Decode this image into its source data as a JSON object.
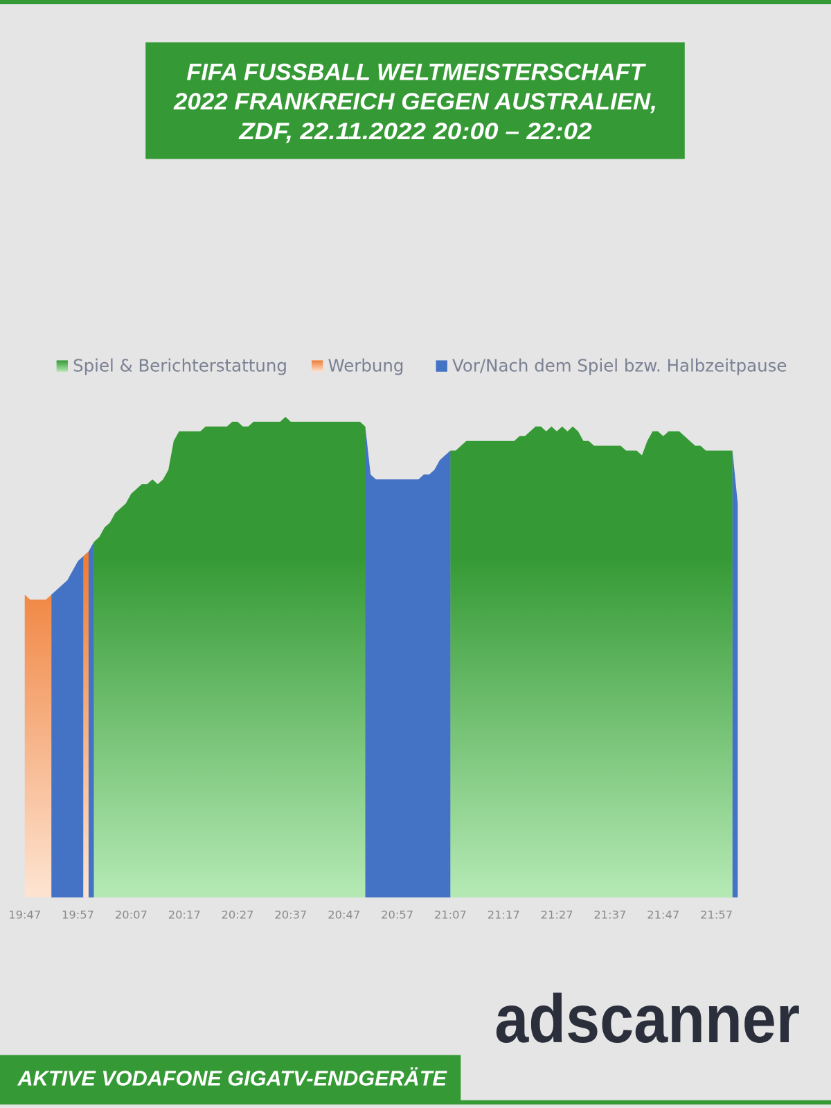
{
  "chart_data": {
    "type": "area",
    "title": [
      "FIFA FUSSBALL WELTMEISTERSCHAFT",
      "2022 FRANKREICH GEGEN AUSTRALIEN,",
      "ZDF, 22.11.2022 20:00 – 22:02"
    ],
    "footer": "AKTIVE VODAFONE GIGATV-ENDGERÄTE",
    "logo": "adscanner",
    "x": [
      "19:47",
      "19:48",
      "19:49",
      "19:50",
      "19:51",
      "19:52",
      "19:53",
      "19:54",
      "19:55",
      "19:56",
      "19:57",
      "19:58",
      "19:59",
      "20:00",
      "20:01",
      "20:02",
      "20:03",
      "20:04",
      "20:05",
      "20:06",
      "20:07",
      "20:08",
      "20:09",
      "20:10",
      "20:11",
      "20:12",
      "20:13",
      "20:14",
      "20:15",
      "20:16",
      "20:17",
      "20:18",
      "20:19",
      "20:20",
      "20:21",
      "20:22",
      "20:23",
      "20:24",
      "20:25",
      "20:26",
      "20:27",
      "20:28",
      "20:29",
      "20:30",
      "20:31",
      "20:32",
      "20:33",
      "20:34",
      "20:35",
      "20:36",
      "20:37",
      "20:38",
      "20:39",
      "20:40",
      "20:41",
      "20:42",
      "20:43",
      "20:44",
      "20:45",
      "20:46",
      "20:47",
      "20:48",
      "20:49",
      "20:50",
      "20:51",
      "20:52",
      "20:53",
      "20:54",
      "20:55",
      "20:56",
      "20:57",
      "20:58",
      "20:59",
      "21:00",
      "21:01",
      "21:02",
      "21:03",
      "21:04",
      "21:05",
      "21:06",
      "21:07",
      "21:08",
      "21:09",
      "21:10",
      "21:11",
      "21:12",
      "21:13",
      "21:14",
      "21:15",
      "21:16",
      "21:17",
      "21:18",
      "21:19",
      "21:20",
      "21:21",
      "21:22",
      "21:23",
      "21:24",
      "21:25",
      "21:26",
      "21:27",
      "21:28",
      "21:29",
      "21:30",
      "21:31",
      "21:32",
      "21:33",
      "21:34",
      "21:35",
      "21:36",
      "21:37",
      "21:38",
      "21:39",
      "21:40",
      "21:41",
      "21:42",
      "21:43",
      "21:44",
      "21:45",
      "21:46",
      "21:47",
      "21:48",
      "21:49",
      "21:50",
      "21:51",
      "21:52",
      "21:53",
      "21:54",
      "21:55",
      "21:56",
      "21:57",
      "21:58",
      "21:59",
      "22:00",
      "22:01"
    ],
    "series": [
      {
        "name": "Spiel & Berichterstattung",
        "color": "#359a35",
        "fill_bottom": "#b3e8b3",
        "gradient": true,
        "values": [
          null,
          null,
          null,
          null,
          null,
          null,
          null,
          null,
          null,
          null,
          null,
          null,
          null,
          74,
          75,
          77,
          78,
          80,
          81,
          82,
          84,
          85,
          86,
          86,
          87,
          86,
          87,
          89,
          95,
          97,
          97,
          97,
          97,
          97,
          98,
          98,
          98,
          98,
          98,
          99,
          99,
          98,
          98,
          99,
          99,
          99,
          99,
          99,
          99,
          100,
          99,
          99,
          99,
          99,
          99,
          99,
          99,
          99,
          99,
          99,
          99,
          99,
          99,
          99,
          98,
          null,
          null,
          null,
          null,
          null,
          null,
          null,
          null,
          null,
          null,
          null,
          null,
          null,
          null,
          null,
          93,
          93,
          94,
          95,
          95,
          95,
          95,
          95,
          95,
          95,
          95,
          95,
          95,
          96,
          96,
          97,
          98,
          98,
          97,
          98,
          97,
          98,
          97,
          98,
          97,
          95,
          95,
          94,
          94,
          94,
          94,
          94,
          94,
          93,
          93,
          93,
          92,
          95,
          97,
          97,
          96,
          97,
          97,
          97,
          96,
          95,
          94,
          94,
          93,
          93,
          93,
          93,
          93,
          93,
          null
        ]
      },
      {
        "name": "Werbung",
        "color": "#ef7d35",
        "fill_bottom": "#fde2cf",
        "gradient": true,
        "values": [
          63,
          62,
          62,
          62,
          62,
          63,
          null,
          null,
          null,
          null,
          null,
          71,
          72,
          null,
          null,
          null,
          null,
          null,
          null,
          null,
          null,
          null,
          null,
          null,
          null,
          null,
          null,
          null,
          null,
          null,
          null,
          null,
          null,
          null,
          null,
          null,
          null,
          null,
          null,
          null,
          null,
          null,
          null,
          null,
          null,
          null,
          null,
          null,
          null,
          null,
          null,
          null,
          null,
          null,
          null,
          null,
          null,
          null,
          null,
          null,
          null,
          null,
          null,
          null,
          null,
          null,
          null,
          null,
          null,
          null,
          null,
          null,
          null,
          null,
          null,
          null,
          null,
          null,
          null,
          null,
          null,
          null,
          null,
          null,
          null,
          null,
          null,
          null,
          null,
          null,
          null,
          null,
          null,
          null,
          null,
          null,
          null,
          null,
          null,
          null,
          null,
          null,
          null,
          null,
          null,
          null,
          null,
          null,
          null,
          null,
          null,
          null,
          null,
          null,
          null,
          null,
          null,
          null,
          null,
          null,
          null,
          null,
          null,
          null,
          null,
          null,
          null,
          null,
          null,
          null,
          null,
          null,
          null,
          null,
          null
        ]
      },
      {
        "name": "Vor/Nach dem Spiel bzw. Halbzeitpause",
        "color": "#4472c4",
        "gradient": false,
        "values": [
          null,
          null,
          null,
          null,
          null,
          63,
          64,
          65,
          66,
          68,
          70,
          71,
          72,
          74,
          null,
          null,
          null,
          null,
          null,
          null,
          null,
          null,
          null,
          null,
          null,
          null,
          null,
          null,
          null,
          null,
          null,
          null,
          null,
          null,
          null,
          null,
          null,
          null,
          null,
          null,
          null,
          null,
          null,
          null,
          null,
          null,
          null,
          null,
          null,
          null,
          null,
          null,
          null,
          null,
          null,
          null,
          null,
          null,
          null,
          null,
          null,
          null,
          null,
          null,
          98,
          88,
          87,
          87,
          87,
          87,
          87,
          87,
          87,
          87,
          87,
          88,
          88,
          89,
          91,
          92,
          93,
          null,
          null,
          null,
          null,
          null,
          null,
          null,
          null,
          null,
          null,
          null,
          null,
          null,
          null,
          null,
          null,
          null,
          null,
          null,
          null,
          null,
          null,
          null,
          null,
          null,
          null,
          null,
          null,
          null,
          null,
          null,
          null,
          null,
          null,
          null,
          null,
          null,
          null,
          null,
          null,
          null,
          null,
          null,
          null,
          null,
          null,
          null,
          null,
          null,
          null,
          null,
          null,
          93,
          82
        ]
      }
    ],
    "xticks": [
      "19:47",
      "19:57",
      "20:07",
      "20:17",
      "20:27",
      "20:37",
      "20:47",
      "20:57",
      "21:07",
      "21:17",
      "21:27",
      "21:37",
      "21:47",
      "21:57"
    ],
    "ylim": [
      0,
      100
    ],
    "grid": false
  }
}
